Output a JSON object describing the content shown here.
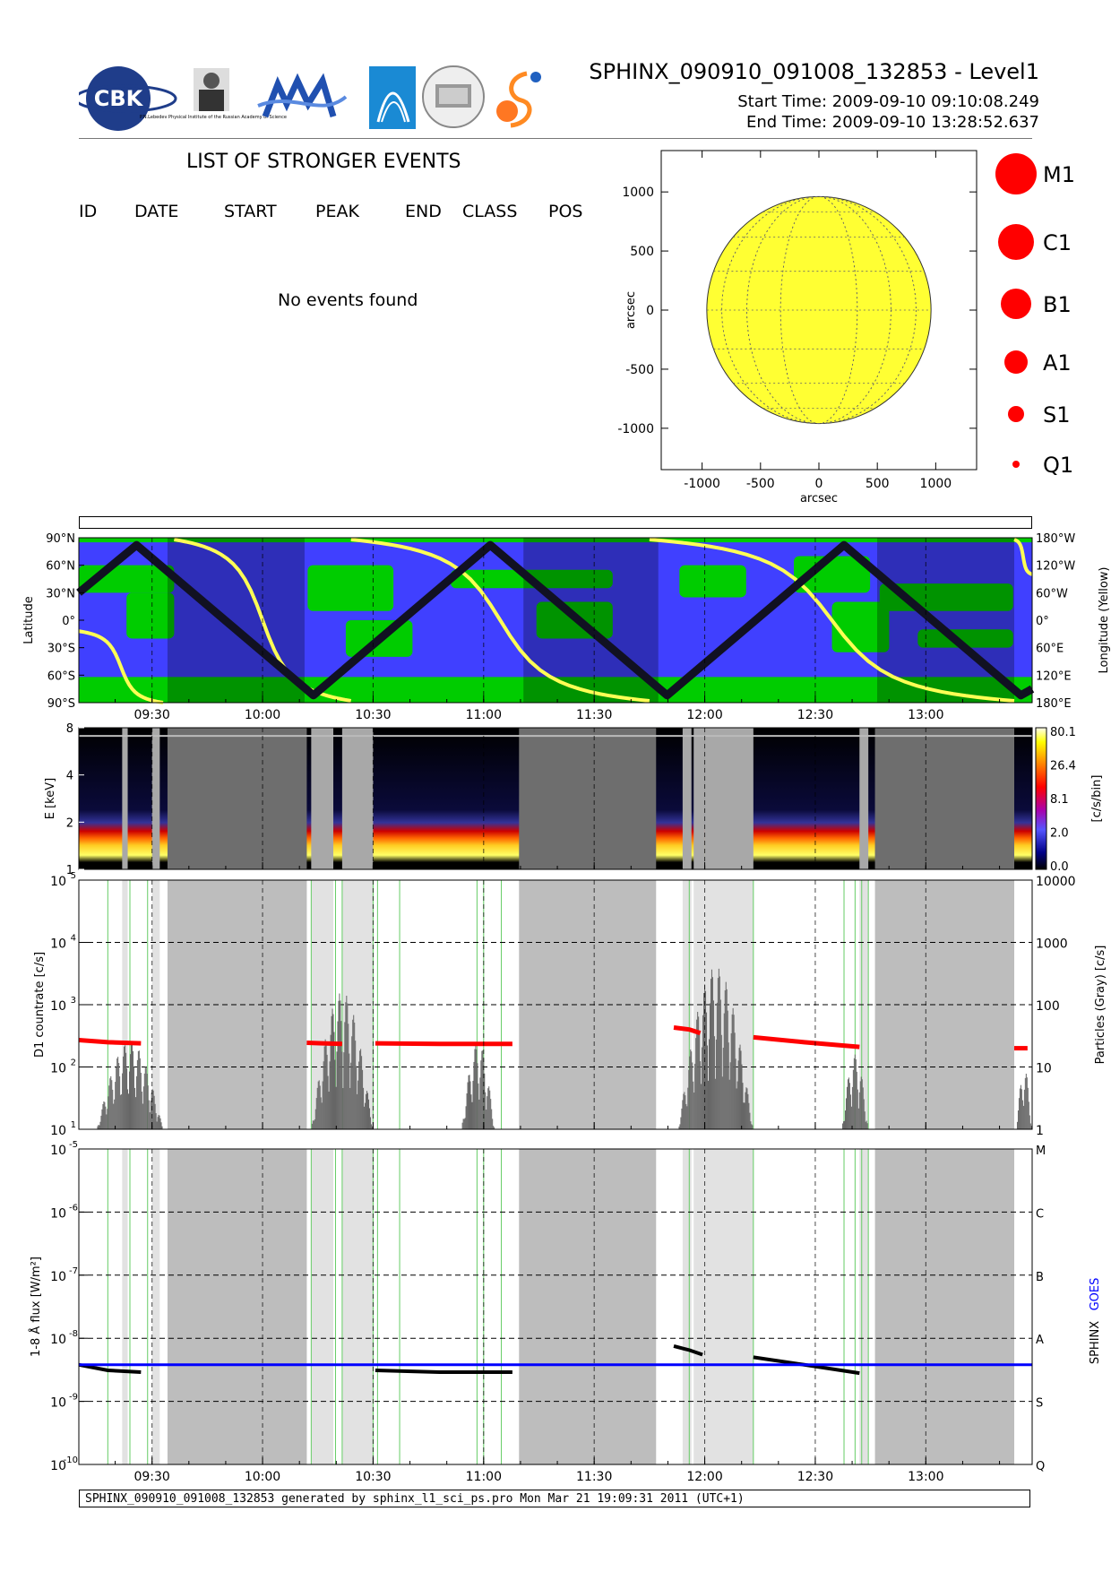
{
  "header": {
    "title": "SPHINX_090910_091008_132853 - Level1",
    "start_time": "Start Time:   2009-09-10   09:10:08.249",
    "end_time": "End Time:   2009-09-10   13:28:52.637",
    "logos": [
      "CBK PAN",
      "P.N.Lebedev Physical Institute of the Russian Academy of Science",
      "MIFI",
      "Arc logo",
      "Panorama building logo",
      "S logo"
    ]
  },
  "events": {
    "title": "LIST OF STRONGER EVENTS",
    "columns": [
      "ID",
      "DATE",
      "START",
      "PEAK",
      "END",
      "CLASS",
      "POS"
    ],
    "empty_message": "No events found"
  },
  "footer": "SPHINX_090910_091008_132853 generated by sphinx_l1_sci_ps.pro Mon Mar 21 19:09:31 2011 (UTC+1)",
  "colors": {
    "sun": "#ffff33",
    "event_marker": "#ff0000",
    "map_ocean": "#4040ff",
    "map_land": "#00cc00",
    "track_yellow": "#ffff55",
    "goes": "#0000ff",
    "particles_gray": "#666666",
    "countrate_red": "#ff0000"
  },
  "chart_data": [
    {
      "type": "scatter",
      "name": "solar-disk-map",
      "xlabel": "arcsec",
      "ylabel": "arcsec",
      "xlim": [
        -1350,
        1350
      ],
      "ylim": [
        -1350,
        1350
      ],
      "xticks": [
        "-1000",
        "-500",
        "0",
        "500",
        "1000"
      ],
      "yticks": [
        "1000",
        "500",
        "0",
        "-500",
        "-1000"
      ],
      "xtick_values": [
        -1000,
        -500,
        0,
        500,
        1000
      ],
      "ytick_values": [
        1000,
        500,
        0,
        -500,
        -1000
      ],
      "disk_radius": 960,
      "points": [],
      "legend": [
        {
          "label": "M1",
          "marker_size": 5
        },
        {
          "label": "C1",
          "marker_size": 4
        },
        {
          "label": "B1",
          "marker_size": 3
        },
        {
          "label": "A1",
          "marker_size": 2
        },
        {
          "label": "S1",
          "marker_size": 1
        },
        {
          "label": "Q1",
          "marker_size": 0
        }
      ]
    },
    {
      "type": "line",
      "name": "orbit-map",
      "ylabel_left": "Latitude",
      "ylabel_right": "Longitude (Yellow)",
      "y_ticks_left": [
        "90°N",
        "60°N",
        "30°N",
        "0°",
        "30°S",
        "60°S",
        "90°S"
      ],
      "y_ticks_right": [
        "180°W",
        "120°W",
        "60°W",
        "0°",
        "60°E",
        "120°E",
        "180°E"
      ],
      "x_ticks": [
        "09:30",
        "10:00",
        "10:30",
        "11:00",
        "11:30",
        "12:00",
        "12:30",
        "13:00"
      ],
      "x_tick_hours": [
        9.5,
        10.0,
        10.5,
        11.0,
        11.5,
        12.0,
        12.5,
        13.0
      ],
      "xlim_hours": [
        9.169,
        13.481
      ],
      "latitude_track": {
        "x_hours": [
          9.169,
          9.43,
          10.23,
          11.03,
          11.83,
          12.63,
          13.43,
          13.481
        ],
        "lat_deg": [
          30,
          82,
          -82,
          82,
          -82,
          82,
          -82,
          -75
        ]
      },
      "night_intervals_hours": [
        [
          9.57,
          10.19
        ],
        [
          11.18,
          11.79
        ],
        [
          12.78,
          13.4
        ]
      ]
    },
    {
      "type": "heatmap",
      "name": "energy-spectrogram",
      "ylabel": "E [keV]",
      "colorbar_label": "[c/s/bin]",
      "colorbar_ticks": [
        "80.1",
        "26.4",
        "8.1",
        "2.0",
        "0.0"
      ],
      "y_ticks": [
        "8",
        "4",
        "2",
        "1"
      ],
      "y_tick_values": [
        8,
        4,
        2,
        1
      ],
      "ylim_keV": [
        1,
        8
      ],
      "peak_band_keV": [
        1.2,
        1.8
      ]
    },
    {
      "type": "line",
      "name": "d1-countrate",
      "ylabel_left": "D1 countrate [c/s]",
      "ylabel_right": "Particles (Gray) [c/s]",
      "y_ticks_left": [
        "10",
        "10",
        "10",
        "10",
        "10"
      ],
      "y_ticks_left_exp": [
        "5",
        "4",
        "3",
        "2",
        "1"
      ],
      "y_ticks_right": [
        "10000",
        "1000",
        "100",
        "10",
        "1"
      ],
      "ylim_left": [
        10,
        100000
      ],
      "ylim_right": [
        1,
        10000
      ],
      "scale": "log",
      "series": [
        {
          "name": "",
          "color": "#ff0000",
          "segments": [
            {
              "x_hours": [
                9.169,
                9.3,
                9.45
              ],
              "y": [
                270,
                250,
                240
              ]
            },
            {
              "x_hours": [
                10.2,
                10.27,
                10.36
              ],
              "y": [
                245,
                240,
                235
              ]
            },
            {
              "x_hours": [
                10.51,
                10.8,
                11.13
              ],
              "y": [
                240,
                235,
                235
              ]
            },
            {
              "x_hours": [
                11.86,
                11.93,
                11.98
              ],
              "y": [
                430,
                400,
                350
              ]
            },
            {
              "x_hours": [
                12.22,
                12.45,
                12.7
              ],
              "y": [
                300,
                250,
                210
              ]
            },
            {
              "x_hours": [
                13.4,
                13.46
              ],
              "y": [
                200,
                200
              ]
            }
          ]
        }
      ]
    },
    {
      "type": "line",
      "name": "flux-1-8a",
      "ylabel_left": "1-8 Å flux [W/m²]",
      "y_ticks_left_exp": [
        "-5",
        "-6",
        "-7",
        "-8",
        "-9",
        "-10"
      ],
      "y_ticks_left": [
        "10",
        "10",
        "10",
        "10",
        "10",
        "10"
      ],
      "y_ticks_right": [
        "M",
        "C",
        "B",
        "A",
        "S",
        "Q"
      ],
      "ylim": [
        1e-10,
        1e-05
      ],
      "scale": "log",
      "legend_right": [
        "SPHINX",
        "GOES"
      ],
      "series": [
        {
          "name": "GOES",
          "color": "#0000ff",
          "x_hours": [
            9.169,
            13.481
          ],
          "y": [
            3.8e-09,
            3.8e-09
          ]
        },
        {
          "name": "SPHINX",
          "color": "#000000",
          "segments": [
            {
              "x_hours": [
                9.169,
                9.3,
                9.45
              ],
              "y": [
                3.8e-09,
                3.1e-09,
                2.9e-09
              ]
            },
            {
              "x_hours": [
                10.51,
                10.8,
                11.13
              ],
              "y": [
                3.1e-09,
                2.9e-09,
                2.9e-09
              ]
            },
            {
              "x_hours": [
                11.86,
                11.93,
                11.99
              ],
              "y": [
                7.5e-09,
                6.5e-09,
                5.5e-09
              ]
            },
            {
              "x_hours": [
                12.22,
                12.45,
                12.7
              ],
              "y": [
                5e-09,
                3.8e-09,
                2.8e-09
              ]
            }
          ]
        }
      ]
    }
  ],
  "shared_time_axis": {
    "xlim_hours": [
      9.169,
      13.481
    ],
    "x_ticks": [
      "09:30",
      "10:00",
      "10:30",
      "11:00",
      "11:30",
      "12:00",
      "12:30",
      "13:00"
    ],
    "x_tick_hours": [
      9.5,
      10.0,
      10.5,
      11.0,
      11.5,
      12.0,
      12.5,
      13.0
    ],
    "dark_gray_intervals_hours": [
      [
        9.57,
        10.2
      ],
      [
        11.16,
        11.78
      ],
      [
        12.77,
        13.4
      ]
    ],
    "light_gray_intervals_hours": [
      [
        9.365,
        9.39
      ],
      [
        9.5,
        9.535
      ],
      [
        10.22,
        10.32
      ],
      [
        10.36,
        10.5
      ],
      [
        11.9,
        11.94
      ],
      [
        11.95,
        12.0
      ],
      [
        12.0,
        12.22
      ],
      [
        12.7,
        12.74
      ]
    ],
    "green_line_hours": [
      9.3,
      9.4,
      9.48,
      10.22,
      10.33,
      10.36,
      10.5,
      10.52,
      10.62,
      10.97,
      11.0,
      11.08,
      11.93,
      12.22,
      12.63,
      12.68,
      12.71,
      12.74
    ]
  }
}
